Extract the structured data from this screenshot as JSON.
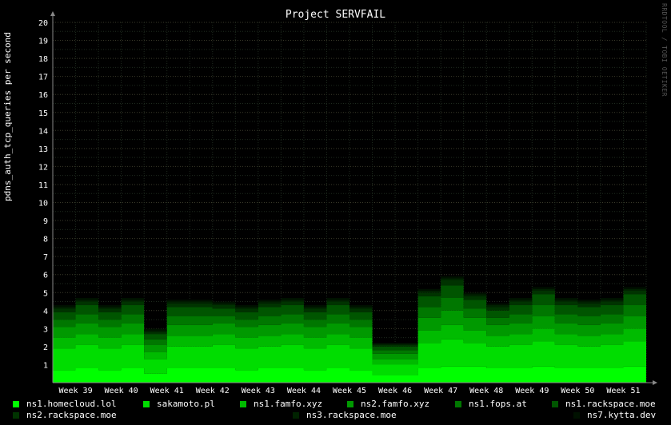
{
  "chart_data": {
    "type": "area",
    "stacked": true,
    "title": "Project SERVFAIL",
    "ylabel": "pdns_auth_tcp_queries per second",
    "xlabel": "",
    "ylim": [
      0,
      20
    ],
    "yticks": [
      "1",
      "2",
      "3",
      "4",
      "5",
      "6",
      "7",
      "8",
      "9",
      "10",
      "11",
      "12",
      "13",
      "14",
      "15",
      "16",
      "17",
      "18",
      "19",
      "20"
    ],
    "categories": [
      "Week 39",
      "Week 40",
      "Week 41",
      "Week 42",
      "Week 43",
      "Week 44",
      "Week 45",
      "Week 46",
      "Week 47",
      "Week 48",
      "Week 49",
      "Week 50",
      "Week 51"
    ],
    "x": [
      "Week 39",
      "",
      "Week 40",
      "",
      "Week 41",
      "",
      "Week 42",
      "",
      "Week 43",
      "",
      "Week 44",
      "",
      "Week 45",
      "",
      "Week 46",
      "",
      "Week 47",
      "",
      "Week 48",
      "",
      "Week 49",
      "",
      "Week 50",
      "",
      "Week 51",
      ""
    ],
    "grid": true,
    "legend_position": "bottom",
    "series": [
      {
        "name": "ns1.homecloud.lol",
        "color": "#00ff00",
        "values": [
          0.7,
          0.8,
          0.7,
          0.8,
          0.5,
          0.8,
          0.8,
          0.8,
          0.7,
          0.8,
          0.8,
          0.7,
          0.8,
          0.7,
          0.4,
          0.4,
          0.8,
          0.9,
          0.9,
          0.8,
          0.8,
          0.9,
          0.8,
          0.8,
          0.8,
          0.9
        ]
      },
      {
        "name": "sakamoto.pl",
        "color": "#00dd00",
        "values": [
          1.2,
          1.3,
          1.2,
          1.3,
          0.8,
          1.2,
          1.2,
          1.3,
          1.2,
          1.2,
          1.3,
          1.2,
          1.3,
          1.2,
          0.6,
          0.6,
          1.4,
          1.5,
          1.3,
          1.2,
          1.3,
          1.4,
          1.3,
          1.2,
          1.3,
          1.4
        ]
      },
      {
        "name": "ns1.famfo.xyz",
        "color": "#00bb00",
        "values": [
          0.6,
          0.6,
          0.6,
          0.6,
          0.4,
          0.6,
          0.6,
          0.6,
          0.6,
          0.6,
          0.6,
          0.6,
          0.6,
          0.6,
          0.3,
          0.3,
          0.7,
          0.8,
          0.7,
          0.6,
          0.6,
          0.7,
          0.6,
          0.6,
          0.6,
          0.7
        ]
      },
      {
        "name": "ns2.famfo.xyz",
        "color": "#009900",
        "values": [
          0.6,
          0.6,
          0.6,
          0.6,
          0.4,
          0.6,
          0.6,
          0.6,
          0.6,
          0.6,
          0.6,
          0.6,
          0.6,
          0.6,
          0.3,
          0.3,
          0.7,
          0.8,
          0.7,
          0.6,
          0.6,
          0.7,
          0.6,
          0.6,
          0.6,
          0.7
        ]
      },
      {
        "name": "ns1.fops.at",
        "color": "#007700",
        "values": [
          0.4,
          0.5,
          0.4,
          0.5,
          0.3,
          0.5,
          0.5,
          0.4,
          0.4,
          0.5,
          0.5,
          0.4,
          0.5,
          0.4,
          0.2,
          0.2,
          0.6,
          0.7,
          0.5,
          0.4,
          0.5,
          0.6,
          0.5,
          0.5,
          0.5,
          0.6
        ]
      },
      {
        "name": "ns1.rackspace.moe",
        "color": "#005500",
        "values": [
          0.4,
          0.5,
          0.4,
          0.5,
          0.3,
          0.5,
          0.5,
          0.4,
          0.4,
          0.5,
          0.5,
          0.4,
          0.5,
          0.4,
          0.2,
          0.2,
          0.6,
          0.7,
          0.5,
          0.4,
          0.5,
          0.6,
          0.5,
          0.5,
          0.5,
          0.6
        ]
      },
      {
        "name": "ns2.rackspace.moe",
        "color": "#003300",
        "values": [
          0.2,
          0.2,
          0.2,
          0.2,
          0.1,
          0.2,
          0.2,
          0.2,
          0.2,
          0.2,
          0.2,
          0.2,
          0.2,
          0.2,
          0.1,
          0.1,
          0.2,
          0.3,
          0.2,
          0.2,
          0.2,
          0.2,
          0.2,
          0.2,
          0.2,
          0.2
        ]
      },
      {
        "name": "ns3.rackspace.moe",
        "color": "#002200",
        "values": [
          0.1,
          0.1,
          0.1,
          0.1,
          0.1,
          0.1,
          0.1,
          0.1,
          0.1,
          0.1,
          0.1,
          0.1,
          0.1,
          0.1,
          0.05,
          0.05,
          0.1,
          0.1,
          0.1,
          0.1,
          0.1,
          0.1,
          0.1,
          0.1,
          0.1,
          0.1
        ]
      },
      {
        "name": "ns7.kytta.dev",
        "color": "#001100",
        "values": [
          0.1,
          0.1,
          0.1,
          0.1,
          0.1,
          0.1,
          0.1,
          0.1,
          0.1,
          0.1,
          0.1,
          0.1,
          0.1,
          0.1,
          0.05,
          0.05,
          0.1,
          0.1,
          0.1,
          0.1,
          0.1,
          0.1,
          0.1,
          0.1,
          0.1,
          0.1
        ]
      }
    ]
  },
  "watermark": "RRDTOOL / TOBI OETIKER"
}
